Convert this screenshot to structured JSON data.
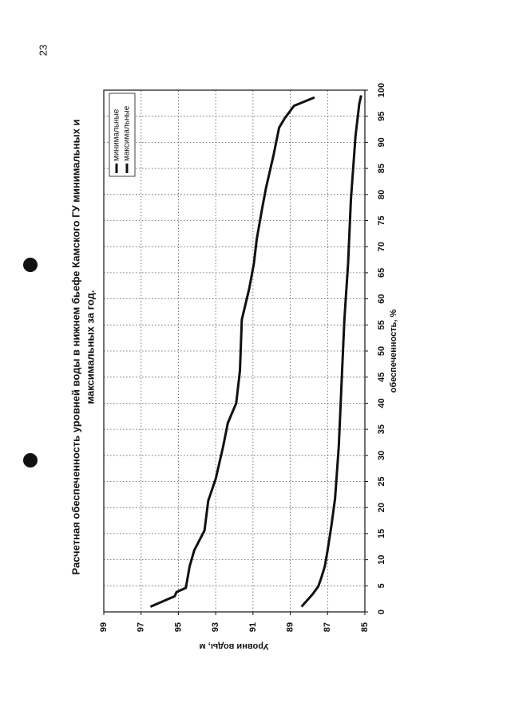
{
  "page_number": "23",
  "chart_data": {
    "type": "line",
    "title": [
      "Расчетная обеспеченность уровней воды в нижнем бьефе Камского ГУ  минимальных и",
      "максимальных за год."
    ],
    "x_label": "обеспеченность, %",
    "y_label": "Уровни воды, м",
    "xlim": [
      0,
      100
    ],
    "xticks": [
      0,
      5,
      10,
      15,
      20,
      25,
      30,
      35,
      40,
      45,
      50,
      55,
      60,
      65,
      70,
      75,
      80,
      85,
      90,
      95,
      100
    ],
    "ylim": [
      85,
      99
    ],
    "yticks": [
      85,
      87,
      89,
      91,
      93,
      95,
      97,
      99
    ],
    "grid": true,
    "legend": "top-right",
    "series": [
      {
        "name": "минимальные",
        "color": "#111111",
        "x": [
          1,
          3.4,
          4.9,
          6.4,
          8.7,
          11.8,
          16.4,
          21.7,
          31.7,
          43.9,
          56,
          66.8,
          79,
          91.3,
          97.4,
          99
        ],
        "values": [
          88.4,
          87.8,
          87.5,
          87.35,
          87.15,
          87.0,
          86.8,
          86.6,
          86.4,
          86.25,
          86.1,
          85.9,
          85.75,
          85.5,
          85.3,
          85.2
        ]
      },
      {
        "name": "максимальные",
        "color": "#111111",
        "x": [
          1,
          3,
          3.8,
          4.6,
          8.7,
          11.8,
          15.6,
          21.3,
          25.5,
          31.7,
          36.2,
          40,
          46.2,
          56,
          62,
          66.8,
          71.4,
          77.5,
          81.3,
          87.5,
          92.8,
          94.6,
          97,
          98.6
        ],
        "values": [
          96.5,
          95.2,
          95.1,
          94.6,
          94.4,
          94.15,
          93.6,
          93.4,
          93.0,
          92.6,
          92.35,
          91.9,
          91.7,
          91.6,
          91.2,
          90.95,
          90.8,
          90.5,
          90.3,
          89.9,
          89.6,
          89.3,
          88.8,
          87.7
        ]
      }
    ]
  }
}
